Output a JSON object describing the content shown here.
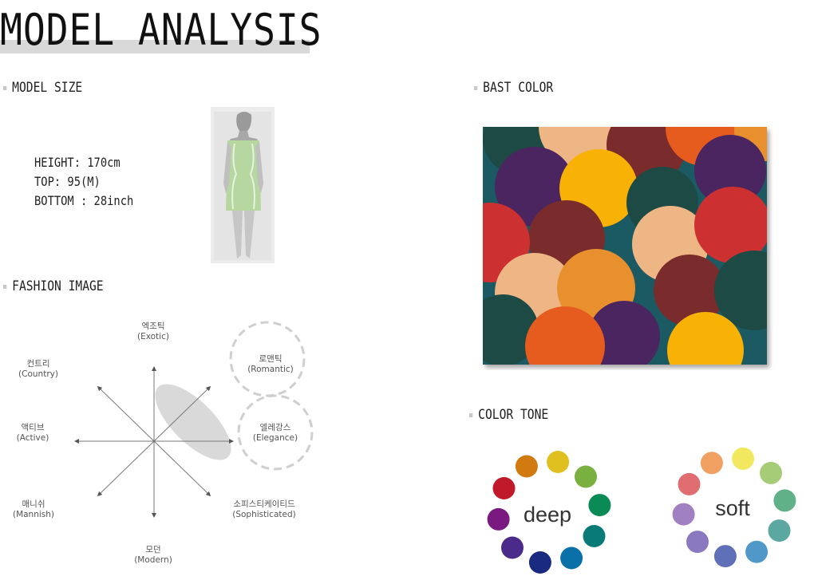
{
  "title": "MODEL ANALYSIS",
  "sections": {
    "model_size": "MODEL SIZE",
    "fashion_image": "FASHION IMAGE",
    "bast_color": "BAST COLOR",
    "color_tone": "COLOR TONE"
  },
  "model_size": {
    "height": "HEIGHT: 170cm",
    "top": "TOP: 95(M)",
    "bottom": "BOTTOM : 28inch"
  },
  "fashion_map": {
    "exotic_ko": "엑조틱",
    "exotic_en": "(Exotic)",
    "romantic_ko": "로맨틱",
    "romantic_en": "(Romantic)",
    "country_ko": "컨트리",
    "country_en": "(Country)",
    "active_ko": "액티브",
    "active_en": "(Active)",
    "elegance_ko": "엘레강스",
    "elegance_en": "(Elegance)",
    "mannish_ko": "매니쉬",
    "mannish_en": "(Mannish)",
    "sophisticated_ko": "소피스티케이티드",
    "sophisticated_en": "(Sophisticated)",
    "modern_ko": "모던",
    "modern_en": "(Modern)"
  },
  "color_tone": {
    "deep_label": "deep",
    "soft_label": "soft",
    "deep_colors": [
      "#e0c020",
      "#7ab040",
      "#0a8a55",
      "#0a7a78",
      "#0a70a8",
      "#1a2a80",
      "#4a2a8a",
      "#7a1a80",
      "#c01a2a",
      "#d07a10"
    ],
    "soft_colors": [
      "#f2e860",
      "#a6cc78",
      "#60b088",
      "#5aa8a0",
      "#5098c8",
      "#6070b8",
      "#8a78c0",
      "#a080c0",
      "#e06e70",
      "#f0a060"
    ]
  },
  "colors": {
    "bg_teal": "#1a5a64",
    "dark_green": "#1d4a44",
    "purple": "#4a2560",
    "maroon": "#7a2b2b",
    "red": "#cc3030",
    "peach": "#efb685",
    "orange": "#e8902e",
    "deep_orange": "#e65c1e",
    "yellow": "#f7b205"
  }
}
